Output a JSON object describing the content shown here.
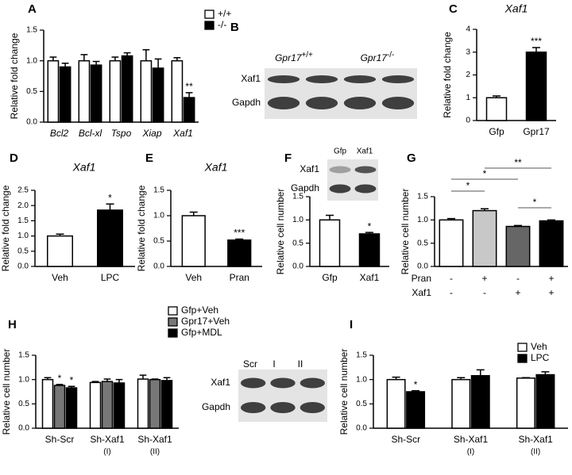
{
  "chart_data": [
    {
      "panel": "A",
      "type": "bar",
      "ylabel": "Relative fold change",
      "categories": [
        "Bcl2",
        "Bcl-xl",
        "Tspo",
        "Xiap",
        "Xaf1"
      ],
      "series": [
        {
          "name": "+/+",
          "color": "#ffffff",
          "values": [
            1.0,
            1.0,
            1.0,
            1.0,
            1.0
          ],
          "errors": [
            0.06,
            0.1,
            0.06,
            0.18,
            0.05
          ]
        },
        {
          "name": "-/-",
          "color": "#000000",
          "values": [
            0.9,
            0.93,
            1.08,
            0.88,
            0.4
          ],
          "errors": [
            0.06,
            0.06,
            0.05,
            0.15,
            0.08
          ],
          "significance": [
            null,
            null,
            null,
            null,
            "**"
          ]
        }
      ],
      "ylim": [
        0,
        1.5
      ],
      "yticks": [
        {
          "value": 0,
          "label": "0.0"
        },
        0.5,
        {
          "value": 1,
          "label": "1.0"
        },
        1.5
      ]
    },
    {
      "panel": "C",
      "type": "bar",
      "title": "Xaf1",
      "ylabel": "Relative fold change",
      "categories": [
        "Gfp",
        "Gpr17"
      ],
      "values": [
        1.0,
        3.0
      ],
      "errors": [
        0.08,
        0.2
      ],
      "colors": [
        "#ffffff",
        "#000000"
      ],
      "significance": [
        null,
        "***"
      ],
      "ylim": [
        0,
        4
      ],
      "yticks": [
        0,
        1,
        2,
        3,
        4
      ]
    },
    {
      "panel": "D",
      "type": "bar",
      "title": "Xaf1",
      "ylabel": "Relative fold change",
      "categories": [
        "Veh",
        "LPC"
      ],
      "values": [
        1.0,
        1.85
      ],
      "errors": [
        0.06,
        0.2
      ],
      "colors": [
        "#ffffff",
        "#000000"
      ],
      "significance": [
        null,
        "*"
      ],
      "ylim": [
        0,
        2.5
      ],
      "yticks": [
        {
          "value": 0,
          "label": "0.0"
        },
        0.5,
        {
          "value": 1,
          "label": "1.0"
        },
        1.5,
        {
          "value": 2,
          "label": "2.0"
        },
        2.5
      ]
    },
    {
      "panel": "E",
      "type": "bar",
      "title": "Xaf1",
      "ylabel": "Relative fold change",
      "categories": [
        "Veh",
        "Pran"
      ],
      "values": [
        1.0,
        0.52
      ],
      "errors": [
        0.07,
        0.02
      ],
      "colors": [
        "#ffffff",
        "#000000"
      ],
      "significance": [
        null,
        "***"
      ],
      "ylim": [
        0,
        1.5
      ],
      "yticks": [
        {
          "value": 0,
          "label": "0.0"
        },
        0.5,
        {
          "value": 1,
          "label": "1.0"
        },
        1.5
      ]
    },
    {
      "panel": "F",
      "type": "bar",
      "ylabel": "Relative cell number",
      "categories": [
        "Gfp",
        "Xaf1"
      ],
      "values": [
        1.0,
        0.7
      ],
      "errors": [
        0.1,
        0.03
      ],
      "colors": [
        "#ffffff",
        "#000000"
      ],
      "significance": [
        null,
        "*"
      ],
      "ylim": [
        0,
        1.5
      ],
      "yticks": [
        {
          "value": 0,
          "label": "0.0"
        },
        0.5,
        {
          "value": 1,
          "label": "1.0"
        },
        1.5
      ]
    },
    {
      "panel": "G",
      "type": "bar",
      "ylabel": "Relative cell number",
      "categories": [
        null,
        null,
        null,
        null
      ],
      "values": [
        1.0,
        1.2,
        0.86,
        0.98
      ],
      "errors": [
        0.03,
        0.04,
        0.02,
        0.02
      ],
      "colors": [
        "#ffffff",
        "#c8c8c8",
        "#666666",
        "#000000"
      ],
      "conditions": [
        {
          "name": "Pran",
          "values": [
            "-",
            "+",
            "-",
            "+"
          ]
        },
        {
          "name": "Xaf1",
          "values": [
            "-",
            "-",
            "+",
            "+"
          ]
        }
      ],
      "comparisons": [
        "*",
        "*",
        "**",
        "*"
      ],
      "ylim": [
        0,
        1.5
      ],
      "yticks": [
        {
          "value": 0,
          "label": "0.0"
        },
        0.5,
        {
          "value": 1,
          "label": "1.0"
        },
        1.5
      ]
    },
    {
      "panel": "H",
      "type": "bar",
      "ylabel": "Relative cell number",
      "categories": [
        "Sh-Scr",
        "Sh-Xaf1",
        "Sh-Xaf1"
      ],
      "subcategories": [
        null,
        "(I)",
        "(II)"
      ],
      "series": [
        {
          "name": "Gfp+Veh",
          "color": "#ffffff",
          "values": [
            1.0,
            0.94,
            1.01
          ],
          "errors": [
            0.04,
            0.02,
            0.08
          ]
        },
        {
          "name": "Gpr17+Veh",
          "color": "#777777",
          "values": [
            0.88,
            0.96,
            1.0
          ],
          "errors": [
            0.02,
            0.05,
            0.01
          ],
          "significance": [
            "*",
            null,
            null
          ]
        },
        {
          "name": "Gfp+MDL",
          "color": "#000000",
          "values": [
            0.83,
            0.93,
            0.98
          ],
          "errors": [
            0.03,
            0.07,
            0.06
          ],
          "significance": [
            "*",
            null,
            null
          ]
        }
      ],
      "ylim": [
        0,
        1.5
      ],
      "yticks": [
        {
          "value": 0,
          "label": "0.0"
        },
        0.5,
        {
          "value": 1,
          "label": "1.0"
        },
        1.5
      ]
    },
    {
      "panel": "I",
      "type": "bar",
      "ylabel": "Relative cell number",
      "categories": [
        "Sh-Scr",
        "Sh-Xaf1",
        "Sh-Xaf1"
      ],
      "subcategories": [
        null,
        "(I)",
        "(II)"
      ],
      "series": [
        {
          "name": "Veh",
          "color": "#ffffff",
          "values": [
            1.0,
            1.0,
            1.03
          ],
          "errors": [
            0.05,
            0.04,
            0.01
          ]
        },
        {
          "name": "LPC",
          "color": "#000000",
          "values": [
            0.75,
            1.08,
            1.1
          ],
          "errors": [
            0.02,
            0.12,
            0.06
          ],
          "significance": [
            "*",
            null,
            null
          ]
        }
      ],
      "ylim": [
        0,
        1.5
      ],
      "yticks": [
        {
          "value": 0,
          "label": "0.0"
        },
        0.5,
        {
          "value": 1,
          "label": "1.0"
        },
        1.5
      ]
    }
  ],
  "blots": [
    {
      "panel": "B",
      "columns": [
        {
          "gene": "Gpr17",
          "genotype": "+/+"
        },
        {
          "gene": "Gpr17",
          "genotype": "-/-"
        }
      ],
      "rows": [
        "Xaf1",
        "Gapdh"
      ]
    },
    {
      "columns": [
        "Gfp",
        "Xaf1"
      ],
      "rows": [
        "Xaf1",
        "Gapdh"
      ]
    },
    {
      "columns": [
        "Scr",
        "I",
        "II"
      ],
      "rows": [
        "Xaf1",
        "Gapdh"
      ]
    }
  ]
}
